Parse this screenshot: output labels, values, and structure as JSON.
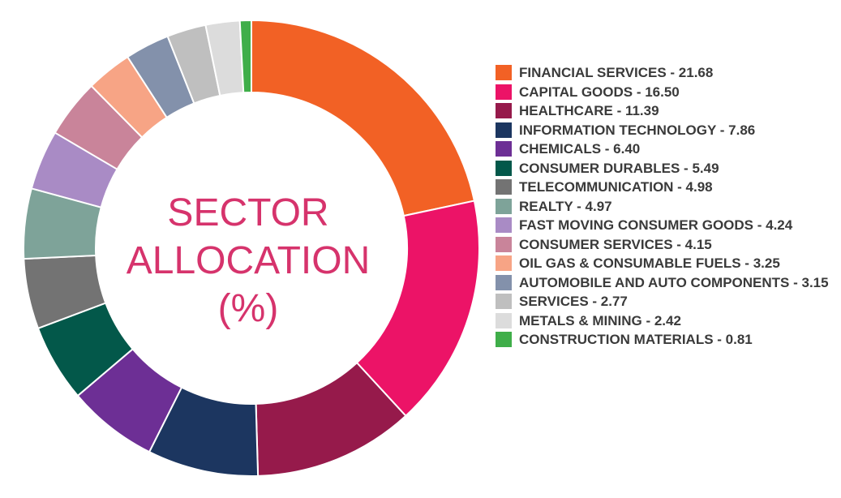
{
  "chart_data": {
    "type": "pie",
    "variant": "donut",
    "title": [
      "SECTOR",
      "ALLOCATION",
      "(%)"
    ],
    "legend_position": "right",
    "slices": [
      {
        "label": "FINANCIAL SERVICES - 21.68",
        "value": 21.68,
        "color": "#f26125"
      },
      {
        "label": "CAPITAL GOODS - 16.50",
        "value": 16.5,
        "color": "#ec1367"
      },
      {
        "label": "HEALTHCARE - 11.39",
        "value": 11.39,
        "color": "#961a4b"
      },
      {
        "label": "INFORMATION TECHNOLOGY - 7.86",
        "value": 7.86,
        "color": "#1c3660"
      },
      {
        "label": "CHEMICALS - 6.40",
        "value": 6.4,
        "color": "#6d2f95"
      },
      {
        "label": "CONSUMER DURABLES - 5.49",
        "value": 5.49,
        "color": "#03584a"
      },
      {
        "label": "TELECOMMUNICATION - 4.98",
        "value": 4.98,
        "color": "#737373"
      },
      {
        "label": "REALTY - 4.97",
        "value": 4.97,
        "color": "#7ea399"
      },
      {
        "label": "FAST MOVING CONSUMER GOODS - 4.24",
        "value": 4.24,
        "color": "#a98bc5"
      },
      {
        "label": "CONSUMER SERVICES - 4.15",
        "value": 4.15,
        "color": "#c9849a"
      },
      {
        "label": "OIL GAS & CONSUMABLE FUELS - 3.25",
        "value": 3.25,
        "color": "#f7a485"
      },
      {
        "label": "AUTOMOBILE AND AUTO COMPONENTS - 3.15",
        "value": 3.15,
        "color": "#8391ab"
      },
      {
        "label": "SERVICES - 2.77",
        "value": 2.77,
        "color": "#bfbfbf"
      },
      {
        "label": "METALS & MINING - 2.42",
        "value": 2.42,
        "color": "#dcdcdc"
      },
      {
        "label": "CONSTRUCTION MATERIALS - 0.81",
        "value": 0.81,
        "color": "#3fae49"
      }
    ]
  }
}
